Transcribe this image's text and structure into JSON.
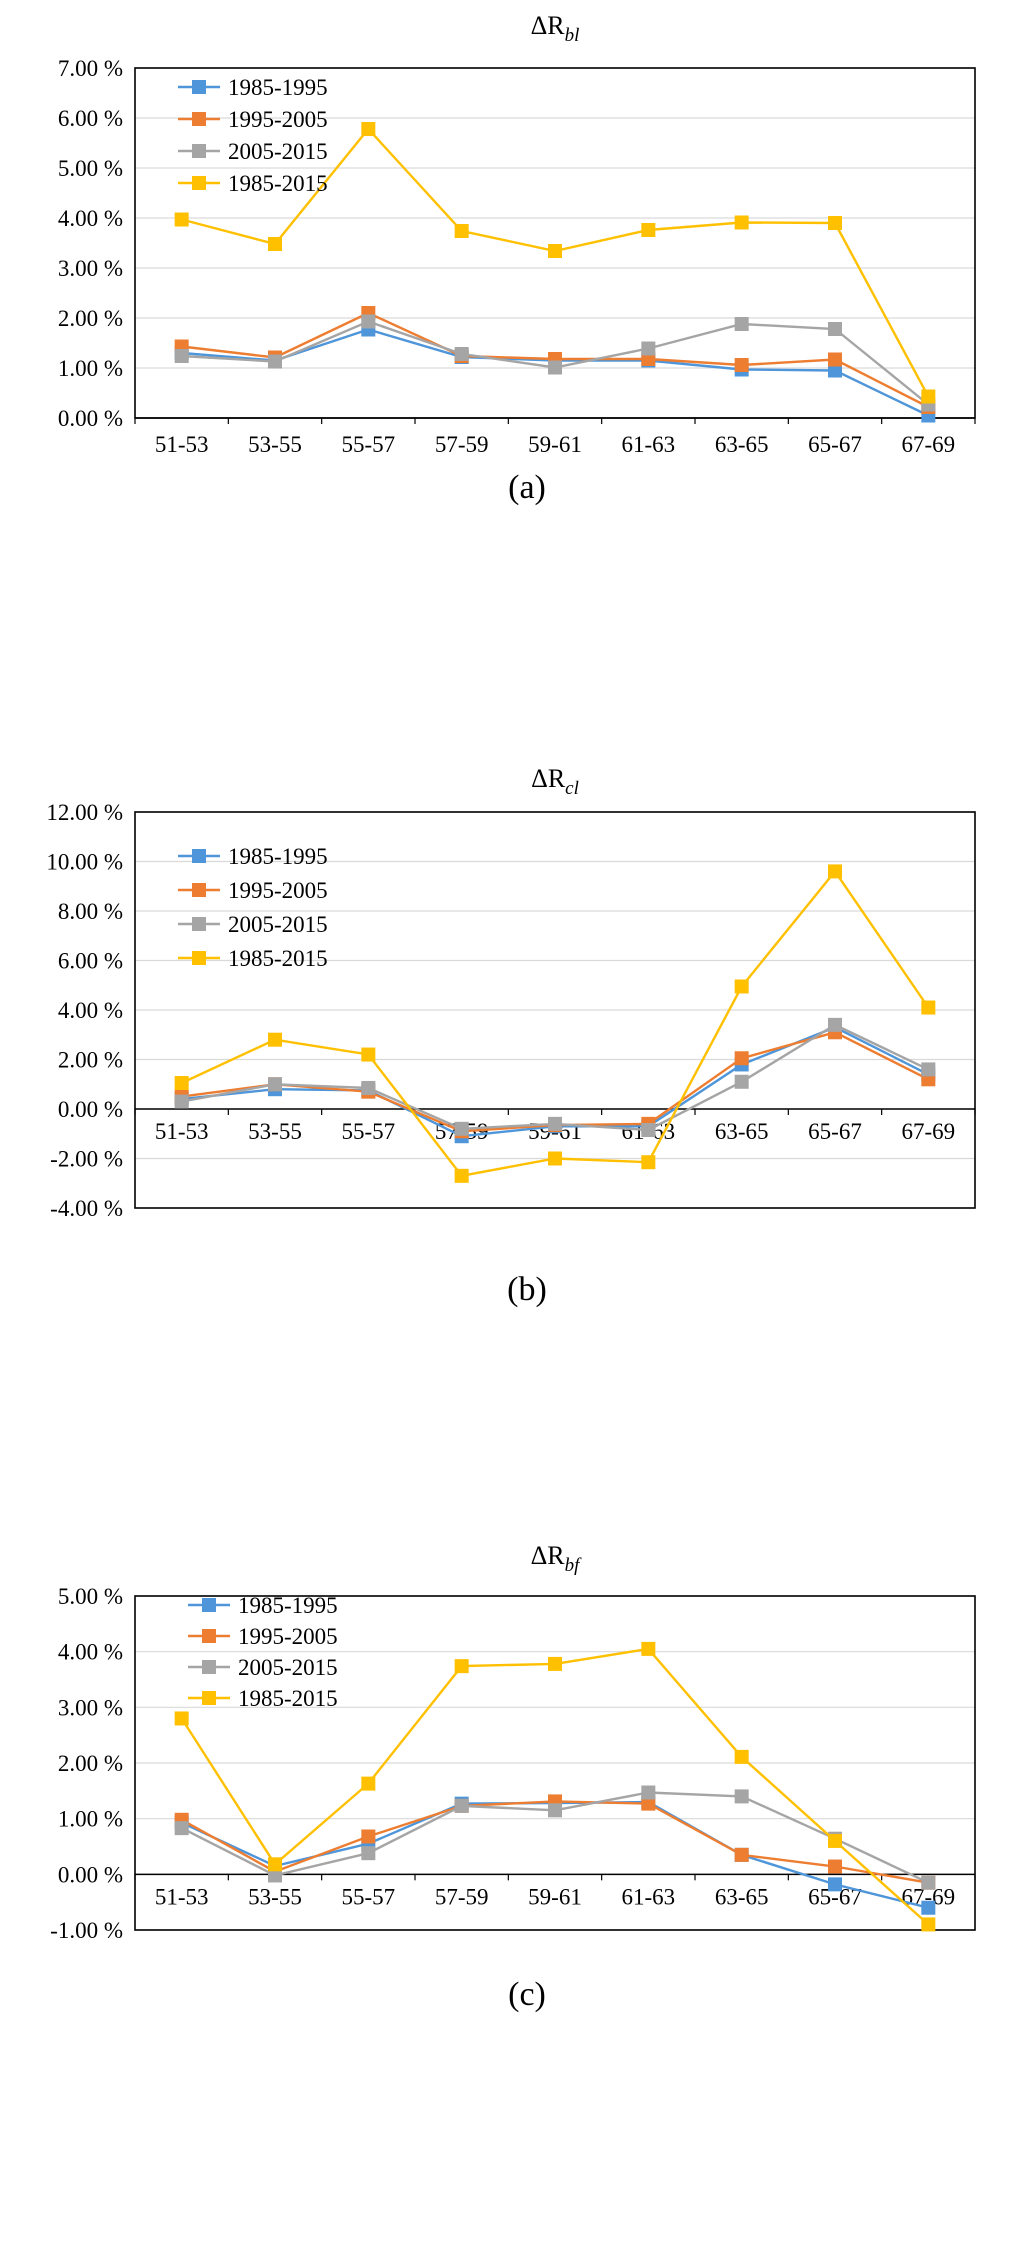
{
  "colors": {
    "1985-1995": "#4e95d9",
    "1995-2005": "#ed7d31",
    "2005-2015": "#a5a5a5",
    "1985-2015": "#ffc000"
  },
  "chart_data": [
    {
      "type": "line",
      "title_main": "ΔR",
      "title_sub": "bl",
      "panel_label": "(a)",
      "categories": [
        "51-53",
        "53-55",
        "55-57",
        "57-59",
        "59-61",
        "61-63",
        "63-65",
        "65-67",
        "67-69"
      ],
      "ylim": [
        0,
        7
      ],
      "yticks": [
        "0.00 %",
        "1.00 %",
        "2.00 %",
        "3.00 %",
        "4.00 %",
        "5.00 %",
        "6.00 %",
        "7.00 %"
      ],
      "grid": true,
      "legend_position": "top-left",
      "series": [
        {
          "name": "1985-1995",
          "values": [
            1.3,
            1.15,
            1.77,
            1.22,
            1.15,
            1.15,
            0.97,
            0.95,
            0.05
          ]
        },
        {
          "name": "1995-2005",
          "values": [
            1.43,
            1.21,
            2.1,
            1.24,
            1.18,
            1.18,
            1.06,
            1.17,
            0.22
          ]
        },
        {
          "name": "2005-2015",
          "values": [
            1.24,
            1.13,
            1.93,
            1.28,
            1.01,
            1.39,
            1.88,
            1.78,
            0.27
          ]
        },
        {
          "name": "1985-2015",
          "values": [
            3.97,
            3.48,
            5.78,
            3.74,
            3.34,
            3.76,
            3.91,
            3.9,
            0.43
          ]
        }
      ]
    },
    {
      "type": "line",
      "title_main": "ΔR",
      "title_sub": "cl",
      "panel_label": "(b)",
      "categories": [
        "51-53",
        "53-55",
        "55-57",
        "57-59",
        "59-61",
        "61-63",
        "63-65",
        "65-67",
        "67-69"
      ],
      "ylim": [
        -4,
        12
      ],
      "yticks": [
        "-4.00 %",
        "-2.00 %",
        "0.00 %",
        "2.00 %",
        "4.00 %",
        "6.00 %",
        "8.00 %",
        "10.00 %",
        "12.00 %"
      ],
      "grid": true,
      "legend_position": "top-left",
      "series": [
        {
          "name": "1985-1995",
          "values": [
            0.4,
            0.8,
            0.75,
            -1.1,
            -0.7,
            -0.7,
            1.8,
            3.3,
            1.4
          ]
        },
        {
          "name": "1995-2005",
          "values": [
            0.5,
            1.0,
            0.7,
            -0.9,
            -0.65,
            -0.6,
            2.05,
            3.1,
            1.2
          ]
        },
        {
          "name": "2005-2015",
          "values": [
            0.3,
            1.0,
            0.85,
            -0.8,
            -0.6,
            -0.85,
            1.1,
            3.4,
            1.6
          ]
        },
        {
          "name": "1985-2015",
          "values": [
            1.05,
            2.8,
            2.2,
            -2.7,
            -2.0,
            -2.15,
            4.95,
            9.6,
            4.1
          ]
        }
      ]
    },
    {
      "type": "line",
      "title_main": "ΔR",
      "title_sub": "bf",
      "panel_label": "(c)",
      "categories": [
        "51-53",
        "53-55",
        "55-57",
        "57-59",
        "59-61",
        "61-63",
        "63-65",
        "65-67",
        "67-69"
      ],
      "ylim": [
        -1,
        5
      ],
      "yticks": [
        "-1.00 %",
        "0.00 %",
        "1.00 %",
        "2.00 %",
        "3.00 %",
        "4.00 %",
        "5.00 %"
      ],
      "grid": true,
      "legend_position": "top-left",
      "series": [
        {
          "name": "1985-1995",
          "values": [
            0.93,
            0.15,
            0.55,
            1.27,
            1.28,
            1.3,
            0.35,
            -0.18,
            -0.6
          ]
        },
        {
          "name": "1995-2005",
          "values": [
            0.98,
            0.05,
            0.68,
            1.23,
            1.31,
            1.27,
            0.35,
            0.14,
            -0.15
          ]
        },
        {
          "name": "2005-2015",
          "values": [
            0.83,
            -0.02,
            0.38,
            1.23,
            1.15,
            1.47,
            1.4,
            0.64,
            -0.15
          ]
        },
        {
          "name": "1985-2015",
          "values": [
            2.8,
            0.18,
            1.63,
            3.74,
            3.78,
            4.05,
            2.11,
            0.6,
            -0.9
          ]
        }
      ]
    }
  ]
}
